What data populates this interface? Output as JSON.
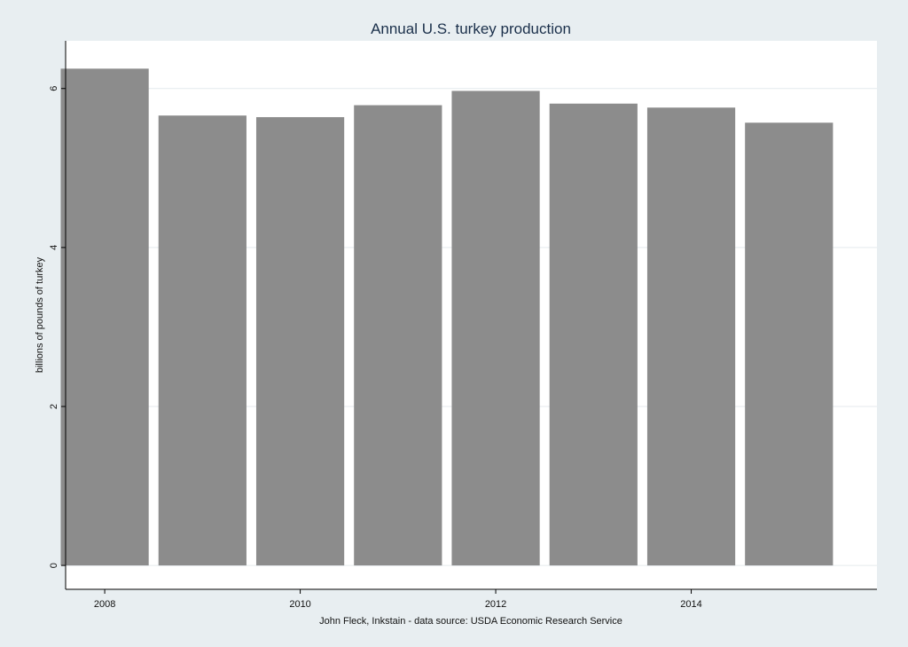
{
  "chart_data": {
    "type": "bar",
    "title": "Annual U.S. turkey production",
    "xlabel": "John Fleck, Inkstain - data source: USDA Economic Research Service",
    "ylabel": "billions of pounds of turkey",
    "categories": [
      2008,
      2009,
      2010,
      2011,
      2012,
      2013,
      2014,
      2015
    ],
    "values": [
      6.25,
      5.66,
      5.64,
      5.79,
      5.97,
      5.81,
      5.76,
      5.57
    ],
    "xlim": [
      2007.6,
      2015.9
    ],
    "ylim": [
      -0.3,
      6.6
    ],
    "x_ticks": [
      2008,
      2010,
      2012,
      2014
    ],
    "y_ticks": [
      0,
      2,
      4,
      6
    ],
    "grid": true,
    "colors": {
      "bar": "#8c8c8c",
      "background": "#e8eef1",
      "plot_area": "#ffffff",
      "title": "#1a2f4a"
    }
  }
}
